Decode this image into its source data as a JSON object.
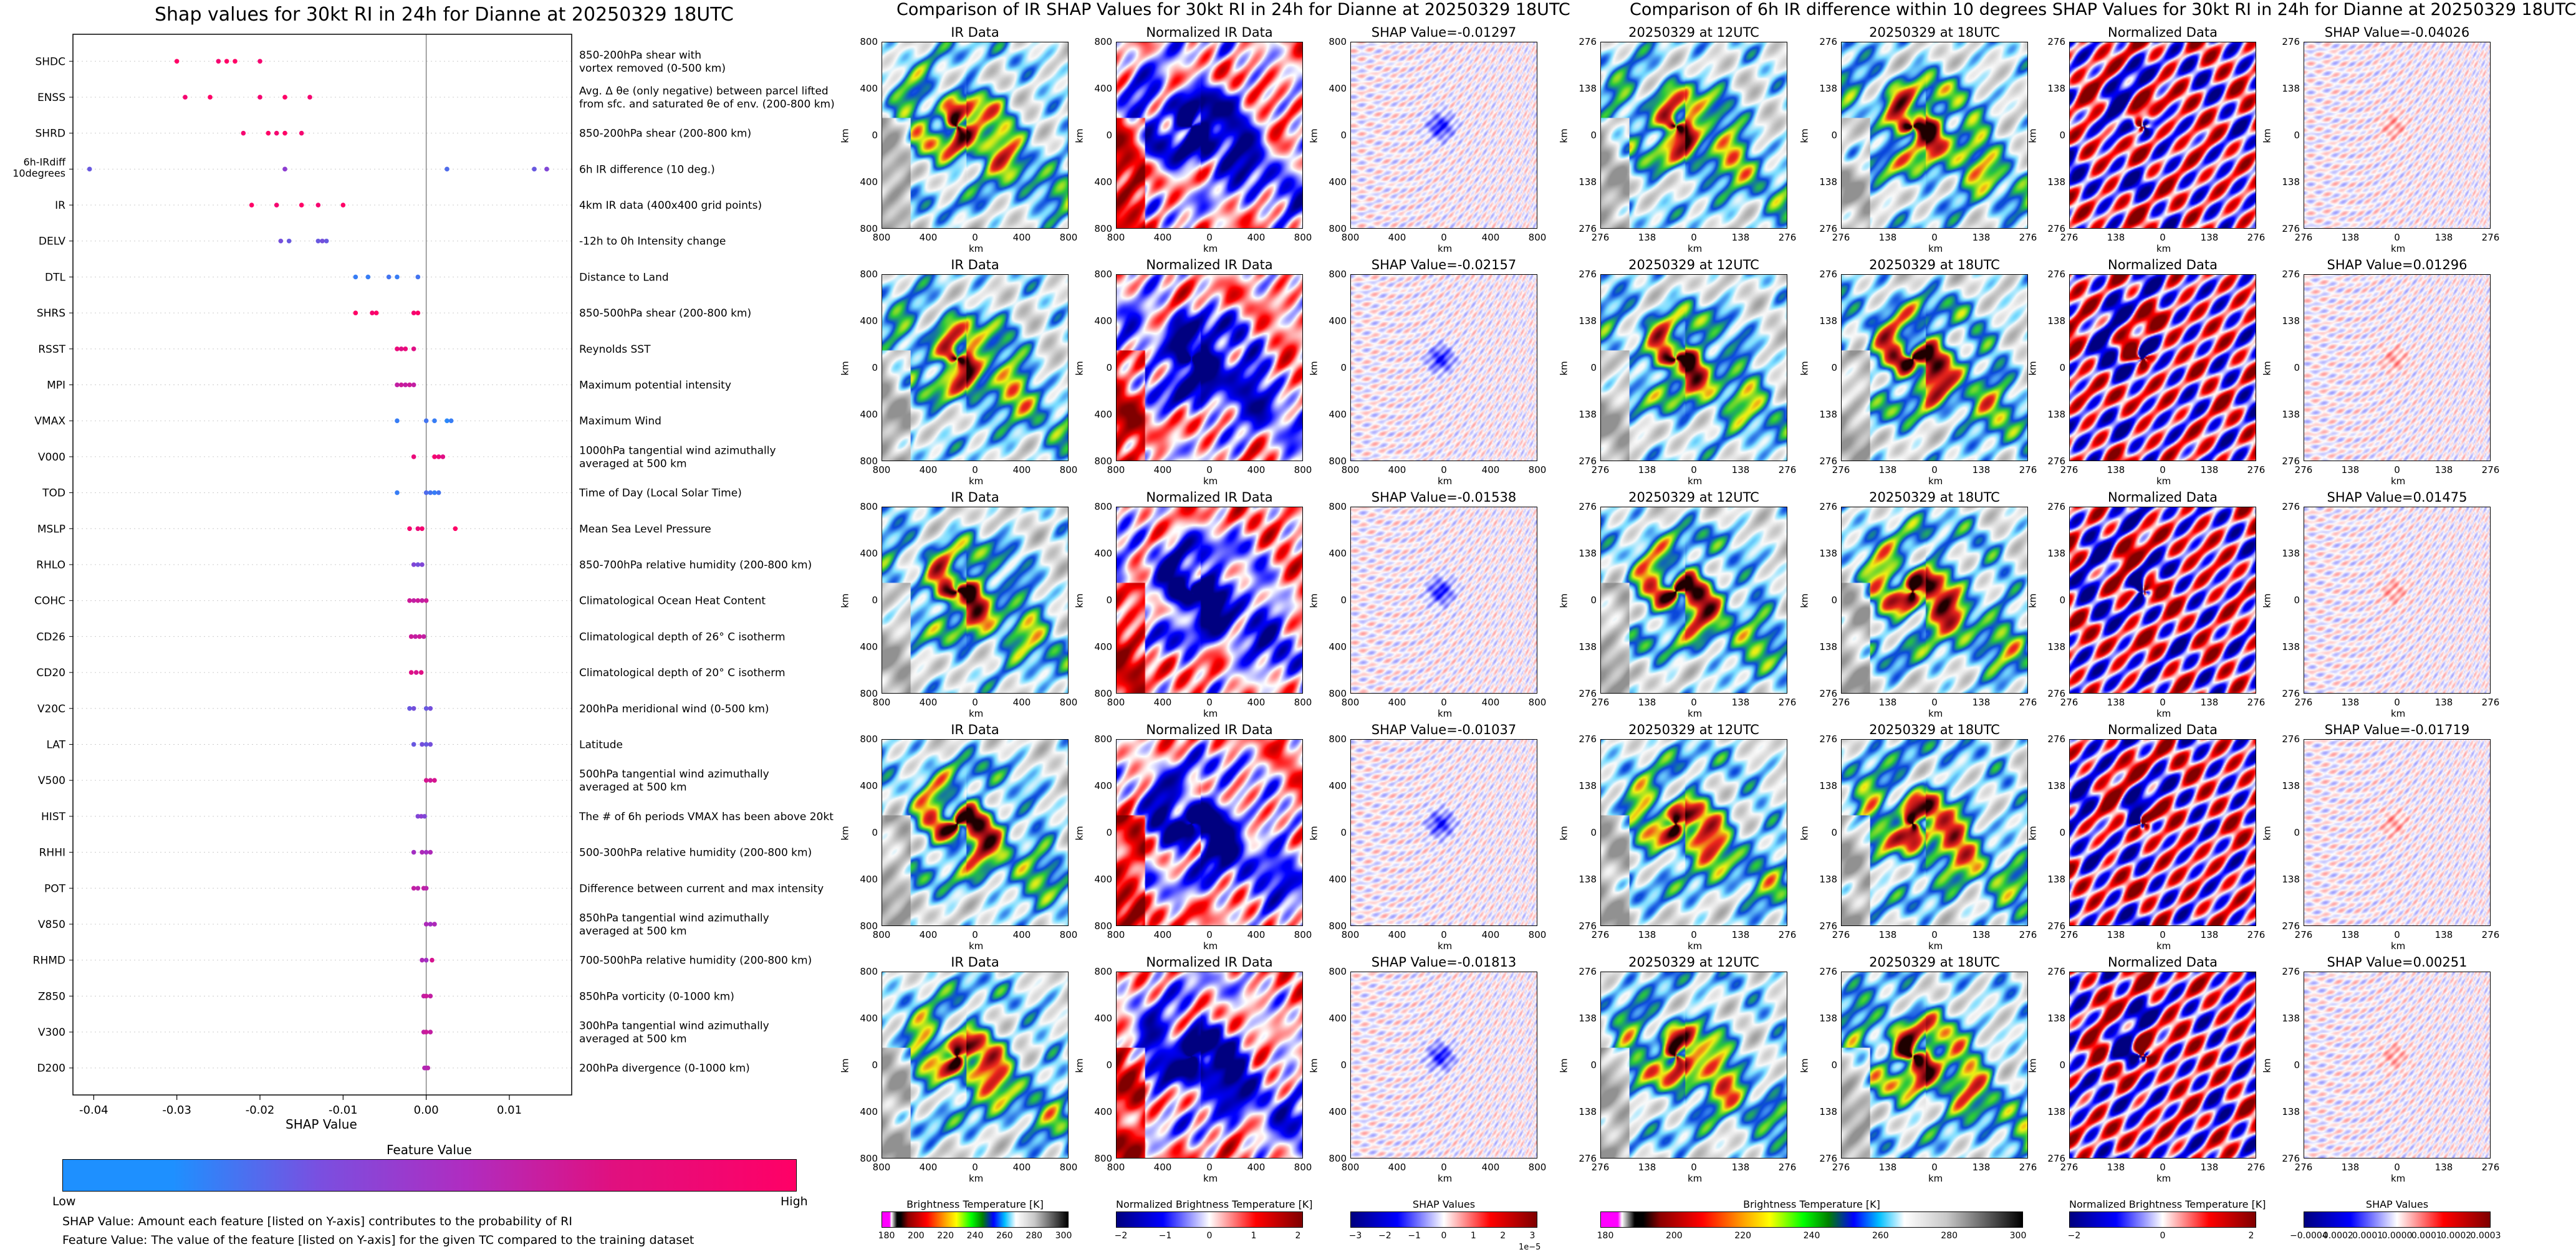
{
  "colors": {
    "feature_low": "#1e90ff",
    "feature_mid": "#9933cc",
    "feature_high": "#ff0066",
    "shap_negative": "#0000ff",
    "shap_positive": "#ff0000"
  },
  "left": {
    "title": "Shap values for 30kt RI in 24h for Dianne at 20250329 18UTC",
    "xlabel": "SHAP Value",
    "colorbar_title": "Feature Value",
    "colorbar_low": "Low",
    "colorbar_high": "High",
    "note1": "SHAP Value: Amount each feature [listed on Y-axis] contributes to the probability of RI",
    "note2": "Feature Value: The value of the feature [listed on Y-axis] for the given TC compared to the training dataset"
  },
  "chart_data": [
    {
      "type": "scatter",
      "title": "Shap values for 30kt RI in 24h for Dianne at 20250329 18UTC",
      "xlabel": "SHAP Value",
      "xlim": [
        -0.0425,
        0.0175
      ],
      "xticks": [
        "-0.04",
        "-0.03",
        "-0.02",
        "-0.01",
        "0.00",
        "0.01"
      ],
      "xtick_values": [
        -0.04,
        -0.03,
        -0.02,
        -0.01,
        0.0,
        0.01
      ],
      "features": [
        {
          "code": "SHDC",
          "desc": [
            "850-200hPa shear with",
            "vortex removed (0-500 km)"
          ],
          "points": [
            [
              -0.03,
              1.0
            ],
            [
              -0.025,
              0.95
            ],
            [
              -0.024,
              1.0
            ],
            [
              -0.023,
              1.0
            ],
            [
              -0.02,
              0.95
            ]
          ]
        },
        {
          "code": "ENSS",
          "desc": [
            "Avg. Δ θe (only negative) between parcel lifted",
            "from sfc. and saturated θe of env. (200-800 km)"
          ],
          "points": [
            [
              -0.029,
              0.95
            ],
            [
              -0.026,
              1.0
            ],
            [
              -0.02,
              0.95
            ],
            [
              -0.017,
              1.0
            ],
            [
              -0.014,
              0.95
            ]
          ]
        },
        {
          "code": "SHRD",
          "desc": [
            "850-200hPa shear (200-800 km)"
          ],
          "points": [
            [
              -0.022,
              0.95
            ],
            [
              -0.019,
              1.0
            ],
            [
              -0.018,
              0.95
            ],
            [
              -0.017,
              1.0
            ],
            [
              -0.015,
              0.95
            ]
          ]
        },
        {
          "code": "6h-IRdiff 10degrees",
          "desc": [
            "6h IR difference (10 deg.)"
          ],
          "points": [
            [
              -0.0405,
              0.3
            ],
            [
              -0.017,
              0.45
            ],
            [
              0.0025,
              0.2
            ],
            [
              0.013,
              0.3
            ],
            [
              0.0145,
              0.4
            ]
          ]
        },
        {
          "code": "IR",
          "desc": [
            "4km IR data (400x400 grid points)"
          ],
          "points": [
            [
              -0.021,
              1.0
            ],
            [
              -0.018,
              0.95
            ],
            [
              -0.015,
              1.0
            ],
            [
              -0.013,
              0.95
            ],
            [
              -0.01,
              1.0
            ]
          ]
        },
        {
          "code": "DELV",
          "desc": [
            "-12h to 0h Intensity change"
          ],
          "points": [
            [
              -0.0175,
              0.35
            ],
            [
              -0.0165,
              0.3
            ],
            [
              -0.013,
              0.3
            ],
            [
              -0.0125,
              0.35
            ],
            [
              -0.012,
              0.3
            ]
          ]
        },
        {
          "code": "DTL",
          "desc": [
            "Distance to Land"
          ],
          "points": [
            [
              -0.0085,
              0.1
            ],
            [
              -0.007,
              0.1
            ],
            [
              -0.0045,
              0.15
            ],
            [
              -0.0035,
              0.1
            ],
            [
              -0.001,
              0.15
            ]
          ]
        },
        {
          "code": "SHRS",
          "desc": [
            "850-500hPa shear (200-800 km)"
          ],
          "points": [
            [
              -0.0085,
              1.0
            ],
            [
              -0.0065,
              0.95
            ],
            [
              -0.006,
              1.0
            ],
            [
              -0.0015,
              0.95
            ],
            [
              -0.001,
              1.0
            ]
          ]
        },
        {
          "code": "RSST",
          "desc": [
            "Reynolds SST"
          ],
          "points": [
            [
              -0.0035,
              0.9
            ],
            [
              -0.003,
              0.85
            ],
            [
              -0.0025,
              0.9
            ],
            [
              -0.0015,
              0.85
            ]
          ]
        },
        {
          "code": "MPI",
          "desc": [
            "Maximum potential intensity"
          ],
          "points": [
            [
              -0.0035,
              0.7
            ],
            [
              -0.003,
              0.75
            ],
            [
              -0.0025,
              0.7
            ],
            [
              -0.002,
              0.75
            ],
            [
              -0.0015,
              0.7
            ]
          ]
        },
        {
          "code": "VMAX",
          "desc": [
            "Maximum Wind"
          ],
          "points": [
            [
              -0.0035,
              0.1
            ],
            [
              0.0,
              0.15
            ],
            [
              0.001,
              0.1
            ],
            [
              0.0025,
              0.05
            ],
            [
              0.003,
              0.1
            ]
          ]
        },
        {
          "code": "V000",
          "desc": [
            "1000hPa tangential wind azimuthally",
            "averaged at 500 km"
          ],
          "points": [
            [
              -0.0015,
              0.9
            ],
            [
              0.001,
              0.95
            ],
            [
              0.0015,
              0.9
            ],
            [
              0.002,
              0.85
            ]
          ]
        },
        {
          "code": "TOD",
          "desc": [
            "Time of Day (Local Solar Time)"
          ],
          "points": [
            [
              -0.0035,
              0.1
            ],
            [
              0.0,
              0.2
            ],
            [
              0.0005,
              0.15
            ],
            [
              0.001,
              0.1
            ],
            [
              0.0015,
              0.15
            ]
          ]
        },
        {
          "code": "MSLP",
          "desc": [
            "Mean Sea Level Pressure"
          ],
          "points": [
            [
              -0.002,
              0.95
            ],
            [
              -0.001,
              0.9
            ],
            [
              -0.0005,
              0.95
            ],
            [
              0.0035,
              1.0
            ]
          ]
        },
        {
          "code": "RHLO",
          "desc": [
            "850-700hPa relative humidity (200-800 km)"
          ],
          "points": [
            [
              -0.0015,
              0.4
            ],
            [
              -0.001,
              0.35
            ],
            [
              -0.0005,
              0.4
            ]
          ]
        },
        {
          "code": "COHC",
          "desc": [
            "Climatological Ocean Heat Content"
          ],
          "points": [
            [
              -0.002,
              0.75
            ],
            [
              -0.0015,
              0.7
            ],
            [
              -0.001,
              0.75
            ],
            [
              -0.0005,
              0.7
            ],
            [
              0.0,
              0.75
            ]
          ]
        },
        {
          "code": "CD26",
          "desc": [
            "Climatological depth of 26° C isotherm"
          ],
          "points": [
            [
              -0.0018,
              0.75
            ],
            [
              -0.0013,
              0.7
            ],
            [
              -0.0008,
              0.75
            ],
            [
              -0.0003,
              0.7
            ]
          ]
        },
        {
          "code": "CD20",
          "desc": [
            "Climatological depth of 20° C isotherm"
          ],
          "points": [
            [
              -0.0018,
              0.85
            ],
            [
              -0.0012,
              0.8
            ],
            [
              -0.0006,
              0.85
            ]
          ]
        },
        {
          "code": "V20C",
          "desc": [
            "200hPa meridional wind (0-500 km)"
          ],
          "points": [
            [
              -0.002,
              0.3
            ],
            [
              -0.0015,
              0.35
            ],
            [
              0.0,
              0.3
            ],
            [
              0.0005,
              0.35
            ]
          ]
        },
        {
          "code": "LAT",
          "desc": [
            "Latitude"
          ],
          "points": [
            [
              -0.0015,
              0.3
            ],
            [
              -0.0005,
              0.35
            ],
            [
              0.0,
              0.3
            ],
            [
              0.0005,
              0.35
            ]
          ]
        },
        {
          "code": "V500",
          "desc": [
            "500hPa tangential wind azimuthally",
            "averaged at 500 km"
          ],
          "points": [
            [
              0.0,
              0.8
            ],
            [
              0.0005,
              0.75
            ],
            [
              0.001,
              0.8
            ]
          ]
        },
        {
          "code": "HIST",
          "desc": [
            "The # of 6h periods VMAX has been above 20kt"
          ],
          "points": [
            [
              -0.001,
              0.4
            ],
            [
              -0.0006,
              0.45
            ],
            [
              -0.0002,
              0.4
            ]
          ]
        },
        {
          "code": "RHHI",
          "desc": [
            "500-300hPa relative humidity (200-800 km)"
          ],
          "points": [
            [
              -0.0015,
              0.55
            ],
            [
              -0.0005,
              0.6
            ],
            [
              0.0,
              0.55
            ],
            [
              0.0005,
              0.6
            ]
          ]
        },
        {
          "code": "POT",
          "desc": [
            "Difference between current and max intensity"
          ],
          "points": [
            [
              -0.0015,
              0.7
            ],
            [
              -0.001,
              0.65
            ],
            [
              -0.0003,
              0.7
            ],
            [
              0.0,
              0.65
            ]
          ]
        },
        {
          "code": "V850",
          "desc": [
            "850hPa tangential wind azimuthally",
            "averaged at 500 km"
          ],
          "points": [
            [
              0.0,
              0.6
            ],
            [
              0.0005,
              0.55
            ],
            [
              0.001,
              0.6
            ]
          ]
        },
        {
          "code": "RHMD",
          "desc": [
            "700-500hPa relative humidity (200-800 km)"
          ],
          "points": [
            [
              -0.0005,
              0.6
            ],
            [
              0.0,
              0.55
            ],
            [
              0.0007,
              0.8
            ]
          ]
        },
        {
          "code": "Z850",
          "desc": [
            "850hPa vorticity (0-1000 km)"
          ],
          "points": [
            [
              -0.0003,
              0.7
            ],
            [
              0.0,
              0.75
            ],
            [
              0.0005,
              0.7
            ]
          ]
        },
        {
          "code": "V300",
          "desc": [
            "300hPa tangential wind azimuthally",
            "averaged at 500 km"
          ],
          "points": [
            [
              -0.0003,
              0.7
            ],
            [
              0.0,
              0.75
            ],
            [
              0.0005,
              0.7
            ]
          ]
        },
        {
          "code": "D200",
          "desc": [
            "200hPa divergence (0-1000 km)"
          ],
          "points": [
            [
              -0.0002,
              0.65
            ],
            [
              0.0,
              0.6
            ],
            [
              0.0002,
              0.65
            ]
          ]
        }
      ]
    },
    {
      "type": "heatmap",
      "title": "Comparison of IR SHAP Values for 30kt RI in 24h for Dianne at 20250329 18UTC",
      "panel_titles": [
        "IR Data",
        "Normalized IR Data"
      ],
      "shap_titles": [
        "SHAP Value=-0.01297",
        "SHAP Value=-0.02157",
        "SHAP Value=-0.01538",
        "SHAP Value=-0.01037",
        "SHAP Value=-0.01813"
      ],
      "axis_label": "km",
      "ticks": [
        "800",
        "400",
        "0",
        "400",
        "800"
      ],
      "colorbars": [
        {
          "label": "Brightness Temperature [K]",
          "ticks": [
            "180",
            "200",
            "220",
            "240",
            "260",
            "280",
            "300"
          ]
        },
        {
          "label": "Normalized Brightness Temperature [K]",
          "ticks": [
            "−2",
            "−1",
            "0",
            "1",
            "2"
          ]
        },
        {
          "label": "SHAP Values",
          "ticks": [
            "−3",
            "−2",
            "−1",
            "0",
            "1",
            "2",
            "3"
          ],
          "offset": "1e−5"
        }
      ]
    },
    {
      "type": "heatmap",
      "title": "Comparison of 6h IR difference within 10 degrees SHAP Values for 30kt RI in 24h for Dianne at 20250329 18UTC",
      "panel_titles": [
        "20250329 at 12UTC",
        "20250329 at 18UTC",
        "Normalized Data"
      ],
      "shap_titles": [
        "SHAP Value=-0.04026",
        "SHAP Value=0.01296",
        "SHAP Value=0.01475",
        "SHAP Value=-0.01719",
        "SHAP Value=0.00251"
      ],
      "axis_label": "km",
      "ticks": [
        "276",
        "138",
        "0",
        "138",
        "276"
      ],
      "colorbars": [
        {
          "label": "Brightness Temperature [K]",
          "ticks": [
            "180",
            "200",
            "220",
            "240",
            "260",
            "280",
            "300"
          ]
        },
        {
          "label": "Normalized Brightness Temperature [K]",
          "ticks": [
            "−2",
            "0",
            "2"
          ]
        },
        {
          "label": "SHAP Values",
          "ticks": [
            "−0.0004",
            "0.0002",
            "0.0001",
            "0.0000",
            "0.0001",
            "0.0002",
            "0.0003"
          ]
        }
      ]
    }
  ]
}
